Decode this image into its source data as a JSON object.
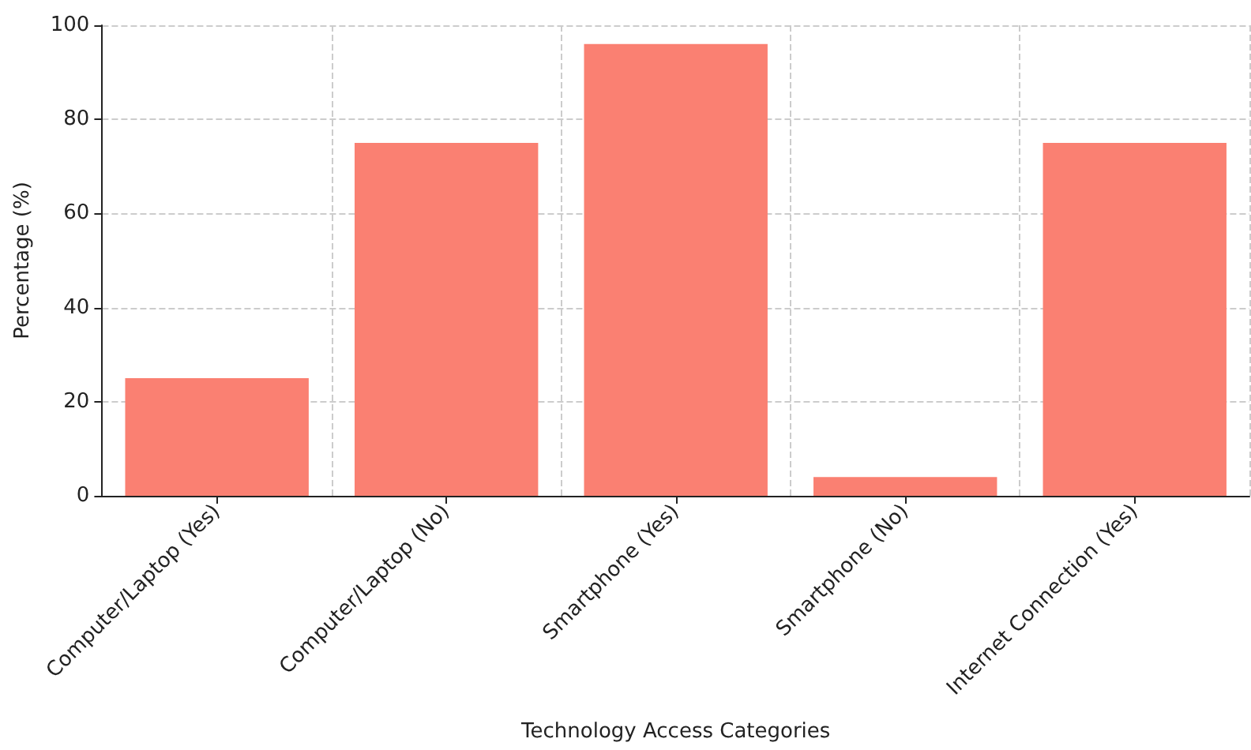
{
  "chart_data": {
    "type": "bar",
    "xlabel": "Technology Access Categories",
    "ylabel": "Percentage (%)",
    "categories": [
      "Computer/Laptop (Yes)",
      "Computer/Laptop (No)",
      "Smartphone (Yes)",
      "Smartphone (No)",
      "Internet Connection (Yes)"
    ],
    "values": [
      25,
      75,
      96,
      4,
      75
    ],
    "color": "#fa8072",
    "ylim": [
      0,
      100
    ],
    "yticks": [
      0,
      20,
      40,
      60,
      80,
      100
    ],
    "grid": true
  }
}
